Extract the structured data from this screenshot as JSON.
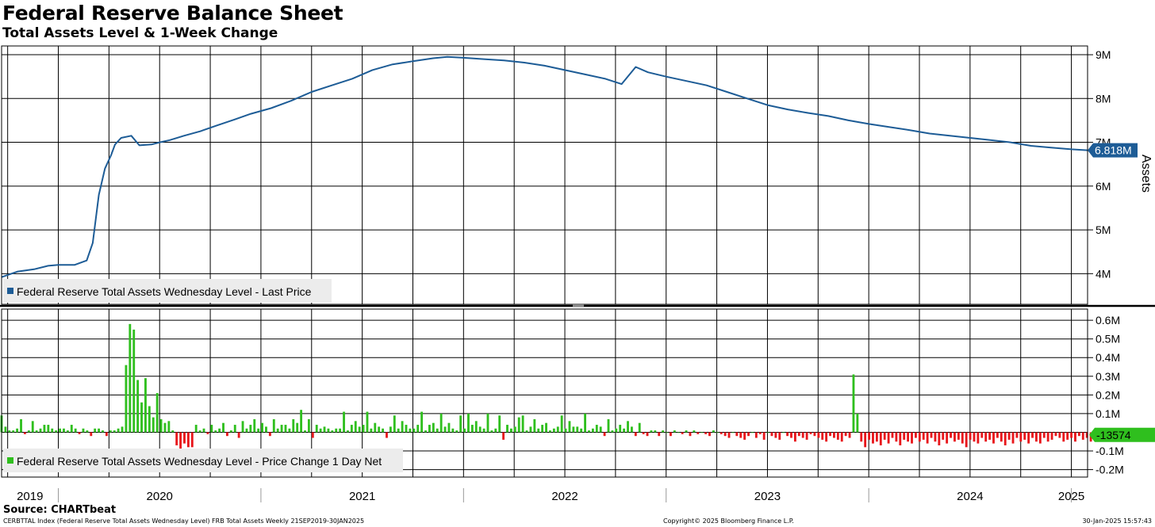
{
  "header": {
    "title": "Federal Reserve Balance Sheet",
    "subtitle": "Total Assets Level & 1-Week Change"
  },
  "footer": {
    "source": "Source: CHARTbeat",
    "index_line": "CERBTTAL Index (Federal Reserve Total Assets Wednesday Level) FRB Total Assets  Weekly 21SEP2019-30JAN2025",
    "copyright": "Copyright© 2025 Bloomberg Finance L.P.",
    "timestamp": "30-Jan-2025 15:57:43"
  },
  "colors": {
    "level_line": "#1d5c96",
    "positive_bar": "#2fbf1e",
    "negative_bar": "#e8161b",
    "grid": "#000000",
    "last_level_badge": "#1d5c96",
    "last_change_badge": "#2fbf1e"
  },
  "chart_data": [
    {
      "type": "line",
      "ylabel": "Assets",
      "ylim": [
        3.3,
        9.2
      ],
      "yticks": [
        "4M",
        "5M",
        "6M",
        "7M",
        "8M",
        "9M"
      ],
      "ytick_values": [
        4,
        5,
        6,
        7,
        8,
        9
      ],
      "unit": "M",
      "legend": "Federal Reserve Total Assets Wednesday Level - Last Price",
      "legend_position": "bottom-left",
      "last_value_label": "6.818M",
      "grid": true,
      "xlim": [
        2019.72,
        2025.08
      ],
      "xticks": [
        "2019",
        "2020",
        "2021",
        "2022",
        "2023",
        "2024",
        "2025"
      ],
      "series": [
        {
          "name": "Federal Reserve Total Assets Wednesday Level - Last Price",
          "x": [
            2019.72,
            2019.8,
            2019.88,
            2019.95,
            2020.0,
            2020.08,
            2020.14,
            2020.17,
            2020.2,
            2020.23,
            2020.26,
            2020.28,
            2020.31,
            2020.36,
            2020.4,
            2020.46,
            2020.5,
            2020.55,
            2020.62,
            2020.7,
            2020.78,
            2020.87,
            2020.95,
            2021.05,
            2021.15,
            2021.25,
            2021.35,
            2021.45,
            2021.55,
            2021.65,
            2021.75,
            2021.85,
            2021.92,
            2022.0,
            2022.1,
            2022.2,
            2022.3,
            2022.4,
            2022.5,
            2022.6,
            2022.7,
            2022.78,
            2022.85,
            2022.91,
            2023.0,
            2023.1,
            2023.2,
            2023.3,
            2023.4,
            2023.5,
            2023.6,
            2023.7,
            2023.8,
            2023.9,
            2024.0,
            2024.1,
            2024.2,
            2024.3,
            2024.4,
            2024.5,
            2024.6,
            2024.7,
            2024.8,
            2024.9,
            2025.0,
            2025.08
          ],
          "values": [
            3.92,
            4.05,
            4.1,
            4.18,
            4.2,
            4.2,
            4.3,
            4.7,
            5.8,
            6.4,
            6.7,
            6.95,
            7.1,
            7.15,
            6.93,
            6.95,
            7.0,
            7.05,
            7.15,
            7.25,
            7.38,
            7.52,
            7.65,
            7.78,
            7.95,
            8.15,
            8.3,
            8.45,
            8.65,
            8.78,
            8.85,
            8.92,
            8.95,
            8.93,
            8.9,
            8.87,
            8.82,
            8.75,
            8.65,
            8.55,
            8.45,
            8.33,
            8.72,
            8.6,
            8.5,
            8.4,
            8.3,
            8.15,
            8.0,
            7.85,
            7.75,
            7.67,
            7.6,
            7.5,
            7.42,
            7.35,
            7.28,
            7.2,
            7.15,
            7.1,
            7.05,
            7.0,
            6.92,
            6.88,
            6.84,
            6.818
          ]
        }
      ]
    },
    {
      "type": "bar",
      "ylim": [
        -0.24,
        0.66
      ],
      "yticks": [
        "0.6M",
        "0.5M",
        "0.4M",
        "0.3M",
        "0.2M",
        "0.1M",
        "-0.1M",
        "-0.2M"
      ],
      "ytick_values": [
        0.6,
        0.5,
        0.4,
        0.3,
        0.2,
        0.1,
        -0.1,
        -0.2
      ],
      "unit": "M",
      "legend": "Federal Reserve Total Assets Wednesday Level - Price Change 1 Day Net",
      "legend_position": "bottom-left",
      "last_value_label": "-13574",
      "grid": true,
      "xlim": [
        2019.72,
        2025.08
      ],
      "series": [
        {
          "name": "Federal Reserve Total Assets Wednesday Level - Price Change 1 Day Net",
          "x_start": 2019.72,
          "x_step": 0.0192,
          "values": [
            0.09,
            0.03,
            0.01,
            0.01,
            0.02,
            0.07,
            -0.01,
            0.01,
            0.06,
            0.01,
            0.02,
            0.04,
            0.04,
            0.02,
            0.01,
            0.02,
            0.02,
            0.01,
            0.04,
            0.02,
            -0.01,
            0.02,
            0.01,
            -0.02,
            0.02,
            0.02,
            0.01,
            -0.02,
            0.01,
            0.01,
            0.02,
            0.03,
            0.36,
            0.58,
            0.55,
            0.28,
            0.16,
            0.29,
            0.14,
            0.08,
            0.21,
            0.07,
            0.05,
            0.06,
            0.01,
            -0.07,
            -0.09,
            -0.06,
            -0.08,
            -0.08,
            0.04,
            0.01,
            0.02,
            -0.01,
            0.04,
            0.01,
            0.02,
            0.05,
            -0.02,
            0.01,
            0.04,
            -0.03,
            0.06,
            0.02,
            0.04,
            0.07,
            0.02,
            0.05,
            0.03,
            -0.02,
            0.07,
            0.02,
            0.04,
            0.04,
            0.02,
            0.07,
            0.05,
            0.12,
            0.01,
            0.07,
            -0.03,
            0.04,
            0.02,
            0.03,
            0.02,
            0.01,
            0.02,
            0.02,
            0.11,
            0.01,
            0.04,
            0.06,
            0.03,
            0.04,
            0.11,
            0.02,
            0.05,
            0.03,
            0.02,
            -0.03,
            0.03,
            0.09,
            0.02,
            0.06,
            0.04,
            0.02,
            0.02,
            0.04,
            0.11,
            0.01,
            0.04,
            0.05,
            0.02,
            0.1,
            0.03,
            0.05,
            0.02,
            0.01,
            0.09,
            0.02,
            0.1,
            0.04,
            0.06,
            0.03,
            0.02,
            0.1,
            0.01,
            0.02,
            0.09,
            -0.04,
            0.04,
            0.02,
            0.03,
            0.08,
            0.09,
            0.01,
            0.03,
            0.07,
            0.02,
            0.04,
            0.05,
            0.01,
            0.02,
            0.03,
            0.09,
            0.02,
            0.06,
            0.03,
            0.03,
            0.02,
            0.1,
            0.01,
            0.02,
            0.04,
            0.03,
            -0.02,
            0.07,
            0.01,
            0.02,
            0.04,
            0.02,
            0.06,
            0.03,
            -0.02,
            0.05,
            -0.01,
            -0.02,
            0.01,
            0.01,
            -0.02,
            0.01,
            0.0,
            -0.02,
            0.01,
            0.0,
            -0.01,
            0.01,
            -0.02,
            0.01,
            -0.01,
            0.0,
            -0.01,
            -0.02,
            0.01,
            0.0,
            -0.01,
            -0.02,
            -0.03,
            0.0,
            -0.02,
            -0.03,
            -0.04,
            -0.02,
            0.0,
            -0.03,
            -0.01,
            -0.04,
            0.0,
            -0.02,
            -0.03,
            -0.04,
            0.0,
            -0.02,
            -0.03,
            -0.05,
            -0.02,
            -0.03,
            -0.04,
            -0.01,
            -0.02,
            -0.03,
            -0.04,
            -0.05,
            -0.02,
            -0.03,
            -0.04,
            -0.05,
            -0.02,
            -0.03,
            0.31,
            0.1,
            -0.05,
            -0.08,
            -0.04,
            -0.06,
            -0.05,
            -0.07,
            -0.04,
            -0.06,
            -0.03,
            -0.05,
            -0.07,
            -0.04,
            -0.05,
            -0.06,
            -0.03,
            -0.05,
            -0.04,
            -0.06,
            -0.03,
            -0.05,
            -0.07,
            -0.04,
            -0.06,
            -0.03,
            -0.05,
            -0.04,
            -0.06,
            -0.08,
            -0.04,
            -0.05,
            -0.06,
            -0.03,
            -0.05,
            -0.04,
            -0.06,
            -0.03,
            -0.05,
            -0.07,
            -0.04,
            -0.06,
            -0.03,
            -0.05,
            -0.04,
            -0.06,
            -0.03,
            -0.05,
            -0.06,
            -0.03,
            -0.05,
            -0.04,
            -0.02,
            -0.03,
            -0.05,
            -0.04,
            -0.03,
            -0.05,
            -0.02,
            -0.04,
            -0.03,
            -0.05,
            -0.02,
            -0.04,
            -0.03,
            -0.02,
            -0.04,
            -0.03,
            -0.02,
            -0.04,
            -0.02,
            -0.03,
            -0.04,
            -0.02,
            -0.03,
            -0.02,
            -0.04,
            -0.02,
            -0.03,
            -0.02,
            -0.01,
            -0.03,
            -0.02,
            -0.03,
            -0.02,
            -0.04,
            -0.02,
            -0.03,
            -0.02,
            -0.01,
            -0.02,
            -0.03,
            -0.02,
            -0.01,
            -0.02,
            -0.03,
            -0.01,
            -0.02,
            -0.03,
            -0.01,
            -0.02,
            -0.03,
            -0.04,
            -0.02,
            -0.03,
            -0.01,
            -0.02,
            -0.01,
            -0.03,
            -0.02,
            -0.01,
            -0.02,
            -0.01,
            -0.02,
            -0.03,
            -0.02,
            -0.01,
            -0.02,
            -0.01,
            -0.02,
            -0.014
          ]
        }
      ]
    }
  ]
}
